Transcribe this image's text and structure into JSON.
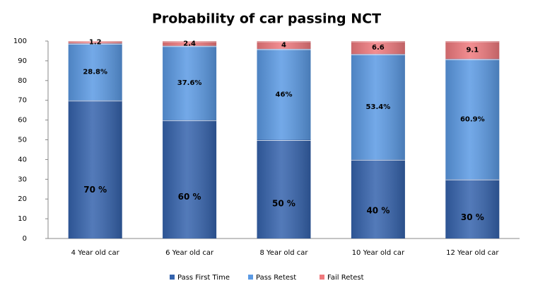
{
  "chart_data": {
    "type": "stacked_bar",
    "title": "Probability of car passing NCT",
    "categories": [
      "4 Year old car",
      "6 Year old car",
      "8 Year old car",
      "10 Year old car",
      "12 Year old car"
    ],
    "series": [
      {
        "name": "Pass First Time",
        "color": "#3563ad",
        "values": [
          70,
          60,
          50,
          40,
          30
        ],
        "value_labels": [
          "70 %",
          "60 %",
          "50 %",
          "40 %",
          "30 %"
        ]
      },
      {
        "name": "Pass Retest",
        "color": "#5b9ae4",
        "values": [
          28.8,
          37.6,
          46,
          53.4,
          60.9
        ],
        "value_labels": [
          "28.8%",
          "37.6%",
          "46%",
          "53.4%",
          "60.9%"
        ]
      },
      {
        "name": "Fail Retest",
        "color": "#f07a7e",
        "values": [
          1.2,
          2.4,
          4,
          6.6,
          9.1
        ]
      }
    ],
    "ylim": [
      0,
      100
    ],
    "yticks": [
      0,
      10,
      20,
      30,
      40,
      50,
      60,
      70,
      80,
      90,
      100
    ],
    "grid": false,
    "legend": "bottom"
  }
}
